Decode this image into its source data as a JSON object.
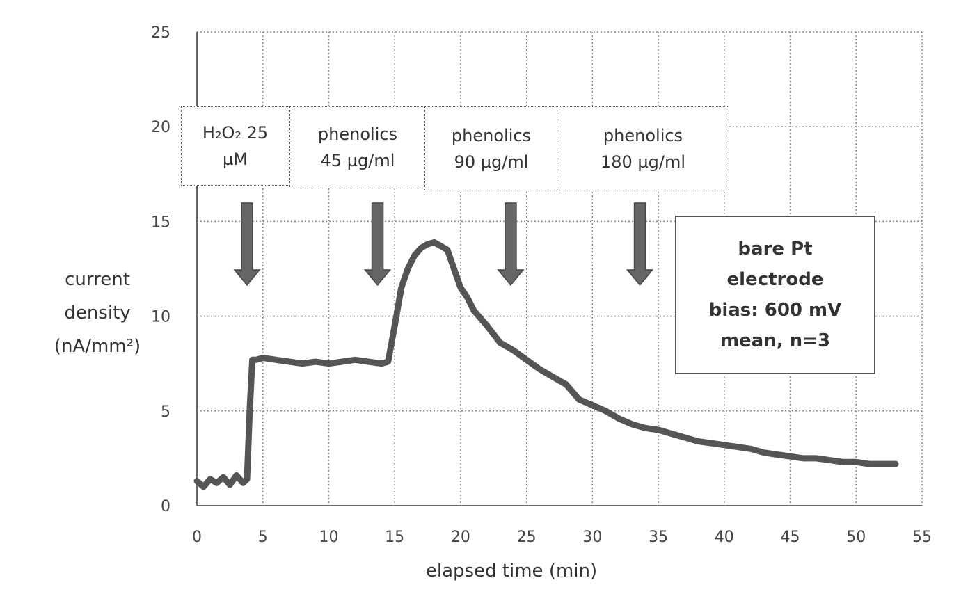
{
  "chart_data": {
    "type": "line",
    "xlabel": "elapsed time (min)",
    "ylabel_lines": [
      "current",
      "density",
      "(nA/mm²)"
    ],
    "xlim": [
      0,
      55
    ],
    "ylim": [
      0,
      25
    ],
    "xticks": [
      0,
      5,
      10,
      15,
      20,
      25,
      30,
      35,
      40,
      45,
      50,
      55
    ],
    "yticks": [
      0,
      5,
      10,
      15,
      20,
      25
    ],
    "grid": true,
    "series": [
      {
        "x": [
          0,
          0.5,
          1,
          1.5,
          2,
          2.5,
          3,
          3.5,
          3.8,
          4.0,
          4.2,
          4.5,
          5,
          6,
          7,
          8,
          9,
          10,
          11,
          12,
          13,
          14,
          14.5,
          15,
          15.5,
          16,
          16.5,
          17,
          17.5,
          18,
          18.5,
          19,
          19.5,
          20,
          20.5,
          21,
          22,
          23,
          24,
          25,
          26,
          27,
          28,
          29,
          30,
          31,
          32,
          33,
          34,
          35,
          36,
          37,
          38,
          39,
          40,
          41,
          42,
          43,
          44,
          45,
          46,
          47,
          48,
          49,
          50,
          51,
          52,
          53
        ],
        "y": [
          1.3,
          1.0,
          1.4,
          1.2,
          1.5,
          1.1,
          1.6,
          1.2,
          1.4,
          5.0,
          7.7,
          7.7,
          7.8,
          7.7,
          7.6,
          7.5,
          7.6,
          7.5,
          7.6,
          7.7,
          7.6,
          7.5,
          7.6,
          9.5,
          11.5,
          12.5,
          13.2,
          13.6,
          13.8,
          13.9,
          13.7,
          13.5,
          12.5,
          11.5,
          11.0,
          10.3,
          9.5,
          8.6,
          8.2,
          7.7,
          7.2,
          6.8,
          6.4,
          5.6,
          5.3,
          5.0,
          4.6,
          4.3,
          4.1,
          4.0,
          3.8,
          3.6,
          3.4,
          3.3,
          3.2,
          3.1,
          3.0,
          2.8,
          2.7,
          2.6,
          2.5,
          2.5,
          2.4,
          2.3,
          2.3,
          2.2,
          2.2,
          2.2
        ],
        "color": "#555555"
      }
    ],
    "annotations": [
      {
        "lines": [
          "H₂O₂ 25",
          "µM"
        ],
        "arrow_x": 3.8
      },
      {
        "lines": [
          "phenolics",
          "45 µg/ml"
        ],
        "arrow_x": 13.7
      },
      {
        "lines": [
          "phenolics",
          "90 µg/ml"
        ],
        "arrow_x": 23.8
      },
      {
        "lines": [
          "phenolics",
          "180 µg/ml"
        ],
        "arrow_x": 33.6
      }
    ],
    "note": [
      "bare Pt",
      "electrode",
      "bias: 600 mV",
      "mean, n=3"
    ]
  }
}
